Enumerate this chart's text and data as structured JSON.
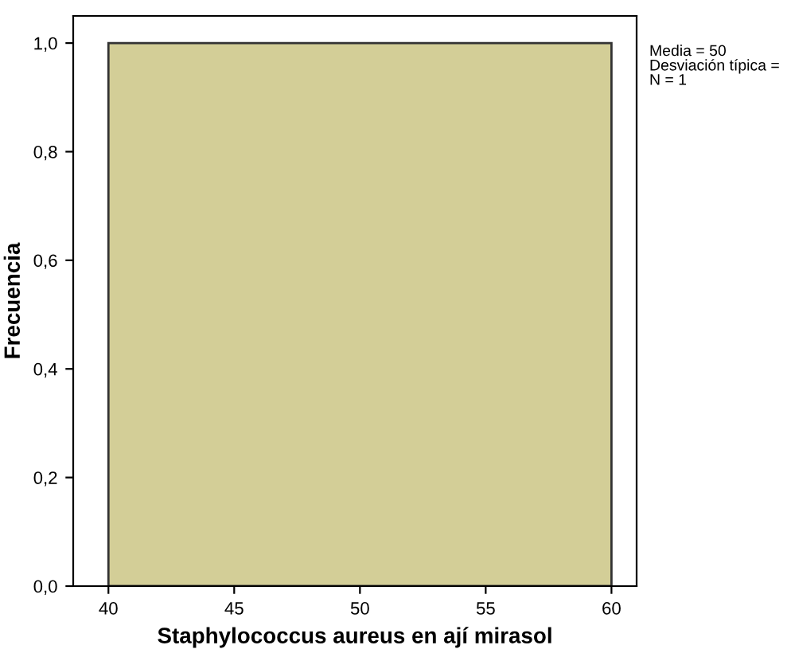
{
  "chart_data": {
    "type": "histogram",
    "xlabel": "Staphylococcus aureus en ají mirasol",
    "ylabel": "Frecuencia",
    "bins": [
      40,
      60
    ],
    "values": [
      1.0
    ],
    "color": "#d3ce97",
    "xlim": [
      38.6,
      61.0
    ],
    "xticks": [
      40,
      45,
      50,
      55,
      60
    ],
    "ylim": [
      0,
      1.05
    ],
    "yticks": [
      {
        "value": 0.0,
        "label": "0,0"
      },
      {
        "value": 0.2,
        "label": "0,2"
      },
      {
        "value": 0.4,
        "label": "0,4"
      },
      {
        "value": 0.6,
        "label": "0,6"
      },
      {
        "value": 0.8,
        "label": "0,8"
      },
      {
        "value": 1.0,
        "label": "1,0"
      }
    ],
    "grid": false,
    "annotations": [
      "Media = 50\nDesviación típica = \nN = 1"
    ]
  }
}
